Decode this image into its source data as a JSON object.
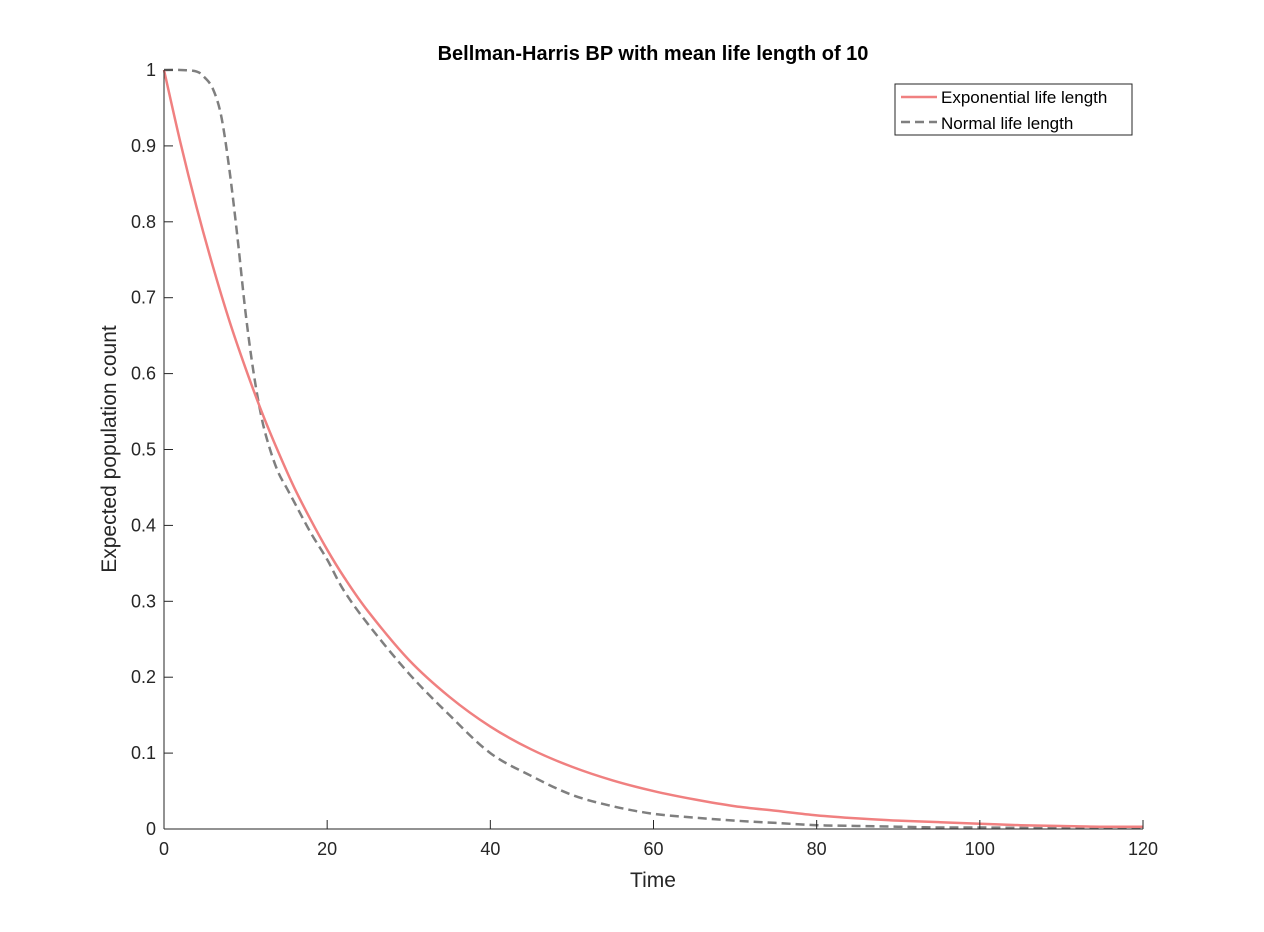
{
  "chart_data": {
    "type": "line",
    "title": "Bellman-Harris BP with mean life length of 10",
    "xlabel": "Time",
    "ylabel": "Expected population count",
    "xlim": [
      0,
      120
    ],
    "ylim": [
      0,
      1
    ],
    "xticks": [
      0,
      20,
      40,
      60,
      80,
      100,
      120
    ],
    "yticks": [
      0,
      0.1,
      0.2,
      0.3,
      0.4,
      0.5,
      0.6,
      0.7,
      0.8,
      0.9,
      1
    ],
    "ytick_labels": [
      "0",
      "0.1",
      "0.2",
      "0.3",
      "0.4",
      "0.5",
      "0.6",
      "0.7",
      "0.8",
      "0.9",
      "1"
    ],
    "xtick_labels": [
      "0",
      "20",
      "40",
      "60",
      "80",
      "100",
      "120"
    ],
    "grid": false,
    "legend_position": "top-right",
    "series": [
      {
        "name": "Exponential life length",
        "color": "#f08080",
        "style": "solid",
        "x": [
          0,
          2,
          4,
          6,
          8,
          10,
          12,
          14,
          16,
          18,
          20,
          22,
          25,
          30,
          35,
          40,
          45,
          50,
          55,
          60,
          65,
          70,
          75,
          80,
          85,
          90,
          95,
          100,
          105,
          110,
          115,
          120
        ],
        "y": [
          1.0,
          0.905,
          0.819,
          0.741,
          0.67,
          0.607,
          0.549,
          0.497,
          0.449,
          0.407,
          0.368,
          0.333,
          0.287,
          0.223,
          0.174,
          0.135,
          0.105,
          0.082,
          0.064,
          0.05,
          0.039,
          0.03,
          0.024,
          0.018,
          0.014,
          0.011,
          0.009,
          0.007,
          0.005,
          0.004,
          0.003,
          0.003
        ]
      },
      {
        "name": "Normal life length",
        "color": "#7f7f7f",
        "style": "dashed",
        "x": [
          0,
          2,
          4,
          5,
          6,
          7,
          8,
          9,
          10,
          11,
          12,
          13,
          14,
          15,
          16,
          18,
          20,
          22,
          25,
          30,
          35,
          40,
          45,
          50,
          55,
          60,
          65,
          70,
          75,
          80,
          85,
          90,
          95,
          100,
          110,
          120
        ],
        "y": [
          1.0,
          1.0,
          0.998,
          0.99,
          0.975,
          0.94,
          0.87,
          0.78,
          0.68,
          0.6,
          0.54,
          0.5,
          0.47,
          0.45,
          0.43,
          0.39,
          0.355,
          0.315,
          0.27,
          0.205,
          0.15,
          0.1,
          0.07,
          0.045,
          0.03,
          0.02,
          0.015,
          0.011,
          0.008,
          0.005,
          0.004,
          0.003,
          0.002,
          0.002,
          0.001,
          0.001
        ]
      }
    ]
  }
}
